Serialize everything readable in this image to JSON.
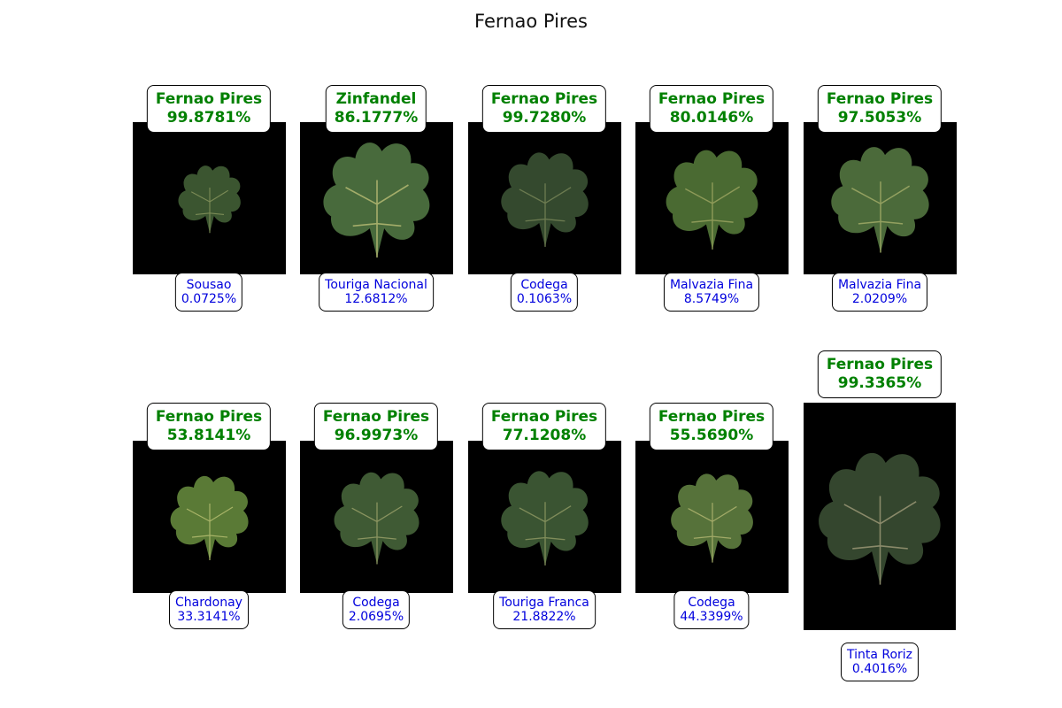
{
  "title": "Fernao Pires",
  "colors": {
    "top_label": "#008000",
    "bottom_label": "#0000dd",
    "image_bg": "#000000",
    "leaf_main": "#3f5a2a"
  },
  "panels": [
    {
      "top_name": "Fernao Pires",
      "top_pct": "99.8781%",
      "bottom_name": "Sousao",
      "bottom_pct": "0.0725%"
    },
    {
      "top_name": "Zinfandel",
      "top_pct": "86.1777%",
      "bottom_name": "Touriga Nacional",
      "bottom_pct": "12.6812%"
    },
    {
      "top_name": "Fernao Pires",
      "top_pct": "99.7280%",
      "bottom_name": "Codega",
      "bottom_pct": "0.1063%"
    },
    {
      "top_name": "Fernao Pires",
      "top_pct": "80.0146%",
      "bottom_name": "Malvazia Fina",
      "bottom_pct": "8.5749%"
    },
    {
      "top_name": "Fernao Pires",
      "top_pct": "97.5053%",
      "bottom_name": "Malvazia Fina",
      "bottom_pct": "2.0209%"
    },
    {
      "top_name": "Fernao Pires",
      "top_pct": "53.8141%",
      "bottom_name": "Chardonay",
      "bottom_pct": "33.3141%"
    },
    {
      "top_name": "Fernao Pires",
      "top_pct": "96.9973%",
      "bottom_name": "Codega",
      "bottom_pct": "2.0695%"
    },
    {
      "top_name": "Fernao Pires",
      "top_pct": "77.1208%",
      "bottom_name": "Touriga Franca",
      "bottom_pct": "21.8822%"
    },
    {
      "top_name": "Fernao Pires",
      "top_pct": "55.5690%",
      "bottom_name": "Codega",
      "bottom_pct": "44.3399%"
    },
    {
      "top_name": "Fernao Pires",
      "top_pct": "99.3365%",
      "bottom_name": "Tinta Roriz",
      "bottom_pct": "0.4016%"
    }
  ]
}
